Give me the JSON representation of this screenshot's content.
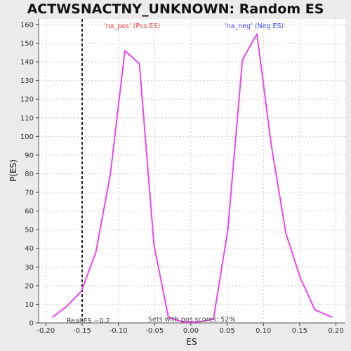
{
  "chart_data": {
    "type": "line",
    "title": "ACTWSNACTNY_UNKNOWN: Random ES distribution",
    "xlabel": "ES",
    "ylabel": "P(ES)",
    "xlim": [
      -0.21,
      0.213
    ],
    "ylim": [
      0,
      163
    ],
    "xticks": [
      -0.2,
      -0.15,
      -0.1,
      -0.05,
      0.0,
      0.05,
      0.1,
      0.15,
      0.2
    ],
    "xtick_labels": [
      "-0.20",
      "-0.15",
      "-0.10",
      "-0.05",
      "0.00",
      "0.05",
      "0.10",
      "0.15",
      "0.20"
    ],
    "yticks": [
      0,
      10,
      20,
      30,
      40,
      50,
      60,
      70,
      80,
      90,
      100,
      110,
      120,
      130,
      140,
      150,
      160
    ],
    "grid": true,
    "series": [
      {
        "color": "#ee44ee",
        "x": [
          -0.191,
          -0.171,
          -0.151,
          -0.131,
          -0.111,
          -0.091,
          -0.071,
          -0.051,
          -0.031,
          -0.011,
          0.011,
          0.031,
          0.051,
          0.071,
          0.091,
          0.111,
          0.131,
          0.151,
          0.171,
          0.195
        ],
        "y": [
          3,
          9,
          17,
          38,
          80,
          146,
          139,
          42,
          3,
          0.5,
          0.5,
          2,
          50,
          141,
          155,
          95,
          48,
          24,
          7,
          3
        ]
      }
    ],
    "annotations": {
      "pos_label": "'na_pos' (Pos ES)",
      "pos_color": "#ee4444",
      "neg_label": "'na_neg' (Neg ES)",
      "neg_color": "#4444ee",
      "real_es_x": -0.15,
      "real_es_label": "Real ES −0.2",
      "pos_scores_label": "Sets with pos scores: 52%"
    }
  }
}
